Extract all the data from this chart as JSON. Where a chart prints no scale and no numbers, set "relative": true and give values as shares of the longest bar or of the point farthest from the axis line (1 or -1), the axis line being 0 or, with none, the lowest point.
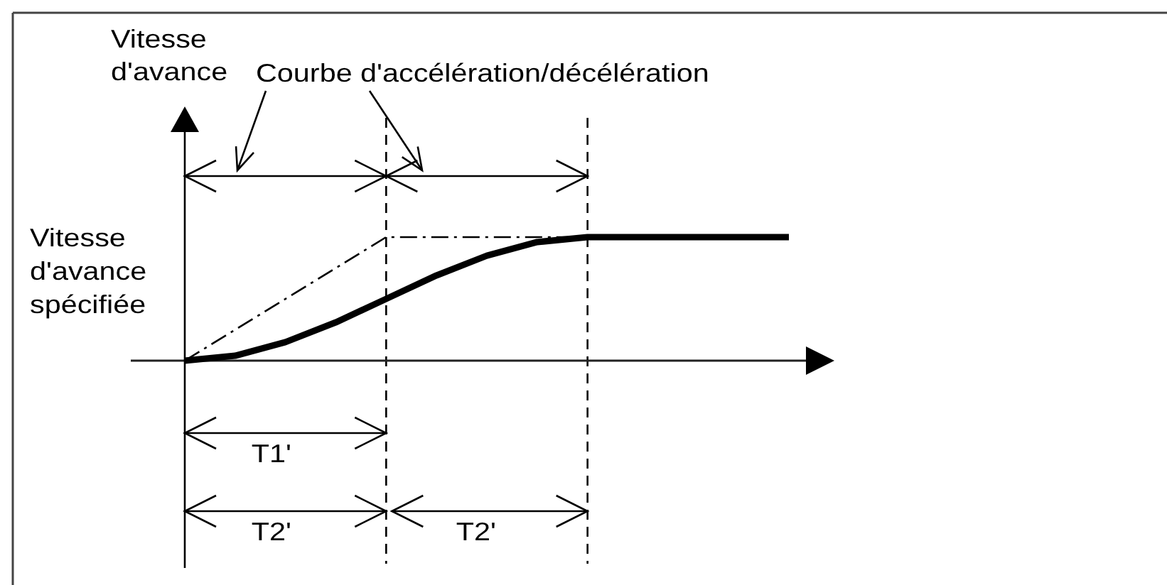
{
  "chart_data": {
    "type": "line",
    "relative": true,
    "categories": [
      null,
      null,
      null,
      null,
      null,
      null,
      null,
      null,
      null,
      null,
      null,
      null,
      null
    ],
    "series": [
      {
        "color": "#000000",
        "line_style": "solid",
        "values": [
          0,
          0.04,
          0.15,
          0.31,
          0.5,
          0.69,
          0.85,
          0.96,
          1,
          1,
          1,
          1,
          1
        ]
      },
      {
        "color": "#000000",
        "line_style": "dashdot",
        "values": [
          0,
          0.25,
          0.5,
          0.75,
          1,
          1,
          1,
          1,
          1,
          null,
          null,
          null,
          null
        ]
      }
    ],
    "annotations": [
      "Vitesse d'avance",
      "Courbe d'accélération/décélération",
      "Vitesse d'avance spécifiée",
      "T1'",
      "T2'",
      "T2'"
    ]
  }
}
